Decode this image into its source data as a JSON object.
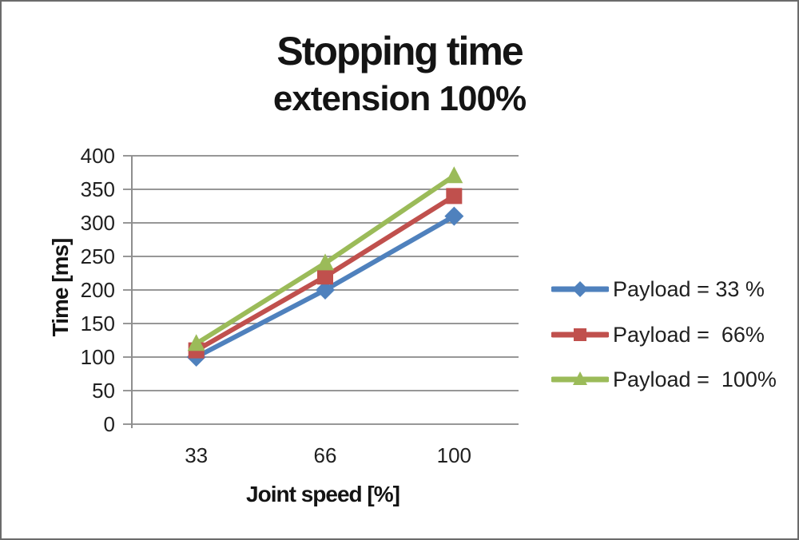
{
  "title": {
    "line1": "Stopping time",
    "line2": "extension 100%"
  },
  "chart_data": {
    "type": "line",
    "title": "Stopping time extension 100%",
    "categories": [
      33,
      66,
      100
    ],
    "x_tick_labels": [
      "33",
      "66",
      "100"
    ],
    "xlabel": "Joint speed [%]",
    "ylabel": "Time [ms]",
    "ylim": [
      0,
      400
    ],
    "ytick_step": 50,
    "ytick_labels": [
      "0",
      "50",
      "100",
      "150",
      "200",
      "250",
      "300",
      "350",
      "400"
    ],
    "grid": true,
    "legend_position": "right",
    "series": [
      {
        "name": "Payload = 33 %",
        "color": "#4F81BD",
        "marker": "diamond",
        "values": [
          100,
          200,
          310
        ]
      },
      {
        "name": "Payload =  66%",
        "color": "#C0504D",
        "marker": "square",
        "values": [
          110,
          220,
          340
        ]
      },
      {
        "name": "Payload =  100%",
        "color": "#9BBB59",
        "marker": "triangle",
        "values": [
          120,
          240,
          370
        ]
      }
    ],
    "colors": {
      "gridline": "#979797",
      "axis": "#8e8e8e",
      "text": "#1f1f1f"
    }
  },
  "canvas": {
    "background": "#ffffff",
    "border": "#6b6b6b"
  }
}
